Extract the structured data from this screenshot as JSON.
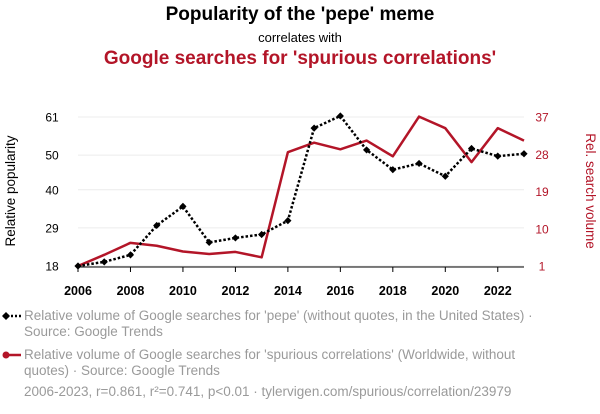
{
  "title": "Popularity of the 'pepe' meme",
  "subtitle": "correlates with",
  "title2": "Google searches for 'spurious correlations'",
  "colors": {
    "series1": "#000000",
    "series2": "#b31528",
    "muted": "#9a9a9a"
  },
  "legend": [
    {
      "text": "Relative volume of Google searches for 'pepe' (without quotes, in the United States) · Source: Google Trends"
    },
    {
      "text": "Relative volume of Google searches for 'spurious correlations' (Worldwide, without quotes) · Source: Google Trends"
    }
  ],
  "footer": "2006-2023, r=0.861, r²=0.741, p<0.01 · tylervigen.com/spurious/correlation/23979",
  "chart_data": {
    "type": "line",
    "x": [
      2006,
      2007,
      2008,
      2009,
      2010,
      2011,
      2012,
      2013,
      2014,
      2015,
      2016,
      2017,
      2018,
      2019,
      2020,
      2021,
      2022,
      2023
    ],
    "xticks": [
      2006,
      2008,
      2010,
      2012,
      2014,
      2016,
      2018,
      2020,
      2022
    ],
    "grid": true,
    "legend_position": "bottom",
    "series": [
      {
        "name": "Relative volume of Google searches for 'pepe' (without quotes, in the United States) · Source: Google Trends",
        "axis": "left",
        "style": "dotted",
        "marker": "diamond",
        "values": [
          18,
          19.2,
          21.2,
          29.7,
          35.2,
          24.8,
          26.1,
          27.1,
          31.1,
          57.8,
          61.3,
          51.5,
          45.8,
          47.6,
          43.9,
          51.9,
          49.7,
          50.4
        ]
      },
      {
        "name": "Relative volume of Google searches for 'spurious correlations' (Worldwide, without quotes) · Source: Google Trends",
        "axis": "right",
        "style": "solid",
        "marker": "none",
        "values": [
          1,
          3.7,
          6.6,
          5.9,
          4.5,
          3.9,
          4.4,
          3.1,
          28.5,
          30.8,
          29.2,
          31.3,
          27.5,
          37.1,
          34.3,
          26.1,
          34.3,
          31.3
        ]
      }
    ],
    "y_left": {
      "label": "Relative popularity",
      "ticks": [
        18,
        29,
        40,
        50,
        61
      ],
      "range": [
        18,
        61
      ]
    },
    "y_right": {
      "label": "Rel. search volume",
      "ticks": [
        1,
        10,
        19,
        28,
        37
      ],
      "range": [
        1,
        37
      ]
    }
  }
}
